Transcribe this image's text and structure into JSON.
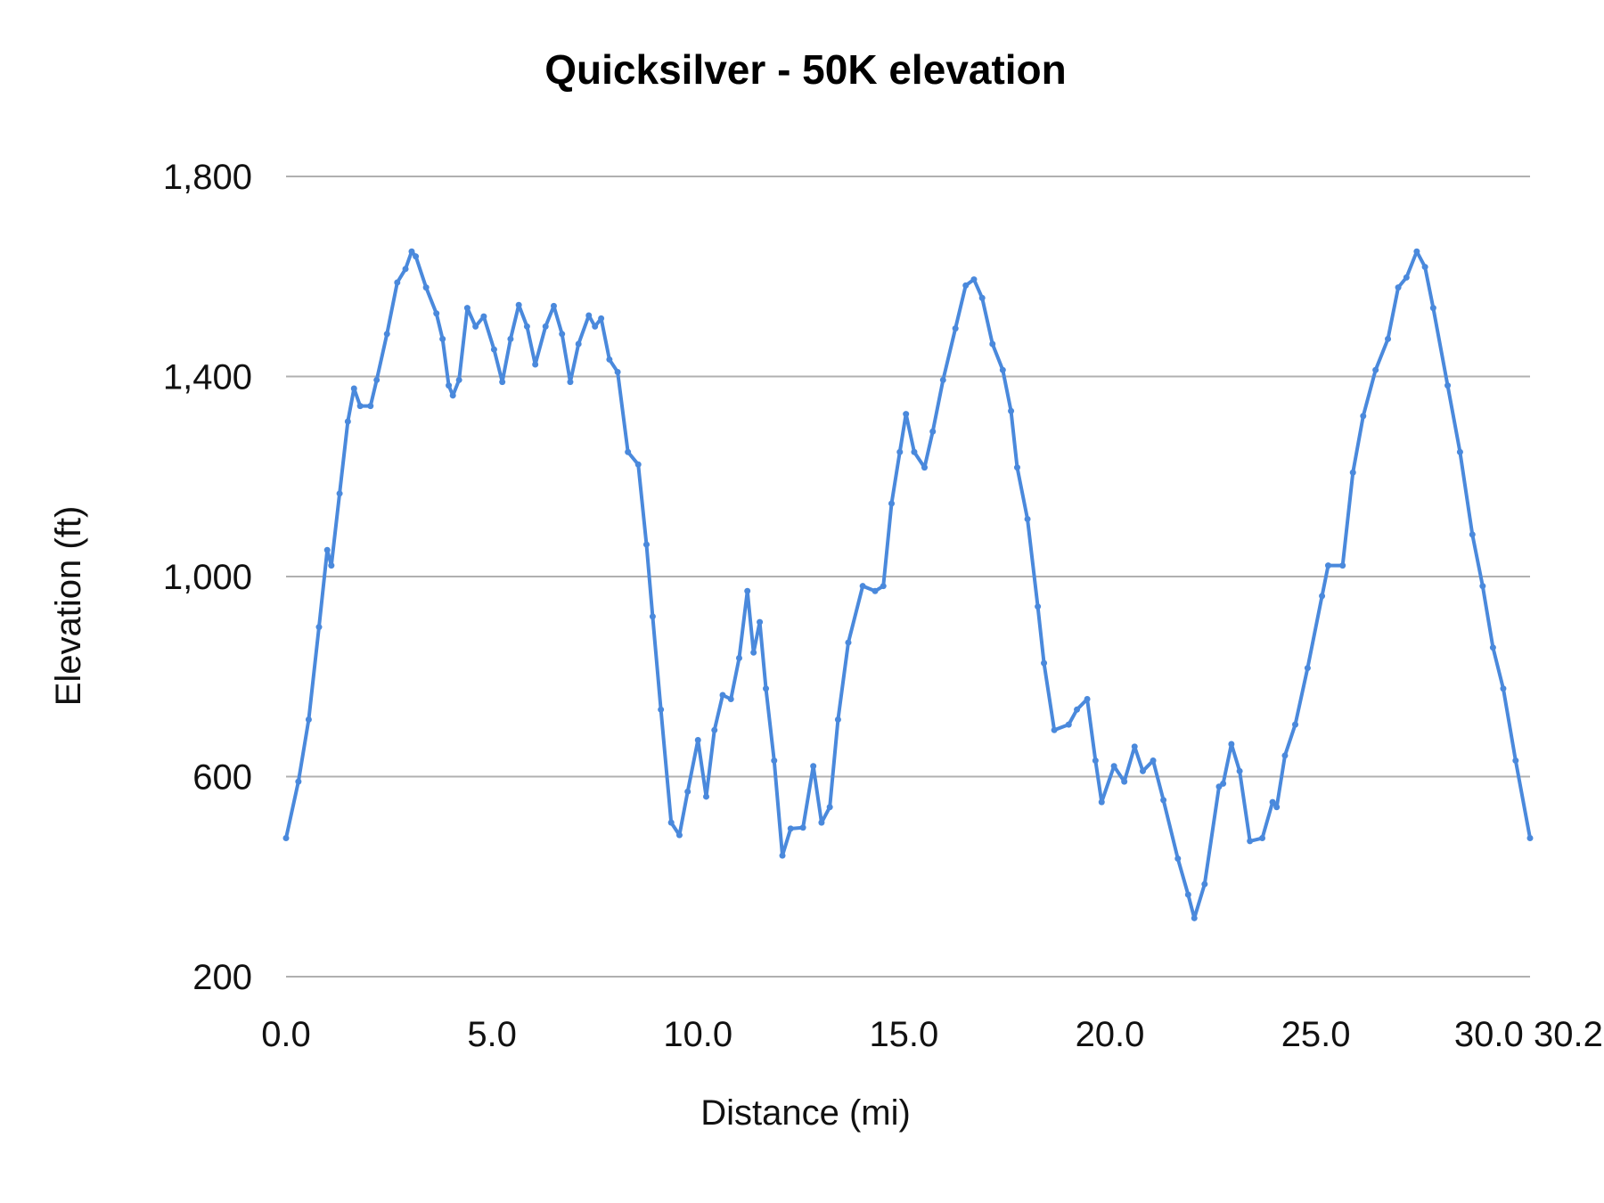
{
  "chart_data": {
    "type": "line",
    "title": "Quicksilver - 50K elevation",
    "xlabel": "Distance (mi)",
    "ylabel": "Elevation (ft)",
    "xlim": [
      0,
      30.2
    ],
    "ylim": [
      200,
      1800
    ],
    "x_ticks": [
      "0.0",
      "5.0",
      "10.0",
      "15.0",
      "20.0",
      "25.0",
      "30.0",
      "30.2"
    ],
    "x_tick_values": [
      0,
      5,
      10,
      15,
      20,
      25,
      30,
      30.2
    ],
    "y_ticks": [
      "200",
      "600",
      "1,000",
      "1,400",
      "1,800"
    ],
    "y_tick_values": [
      200,
      600,
      1000,
      1400,
      1800
    ],
    "grid": "horizontal",
    "legend": "none",
    "colors": {
      "line": "#4a89dc",
      "grid": "#b0b0b0"
    },
    "series": [
      {
        "x": [
          0,
          0.3,
          0.55,
          0.8,
          1.0,
          1.1,
          1.3,
          1.5,
          1.65,
          1.8,
          2.05,
          2.2,
          2.45,
          2.7,
          2.9,
          3.05,
          3.15,
          3.4,
          3.65,
          3.8,
          3.95,
          4.05,
          4.2,
          4.4,
          4.6,
          4.8,
          5.05,
          5.25,
          5.45,
          5.65,
          5.85,
          6.05,
          6.3,
          6.5,
          6.7,
          6.9,
          7.1,
          7.35,
          7.5,
          7.65,
          7.85,
          8.05,
          8.3,
          8.55,
          8.75,
          8.9,
          9.1,
          9.35,
          9.55,
          9.75,
          10.0,
          10.2,
          10.4,
          10.6,
          10.8,
          11.0,
          11.2,
          11.35,
          11.5,
          11.65,
          11.85,
          12.05,
          12.25,
          12.55,
          12.8,
          13.0,
          13.2,
          13.4,
          13.65,
          14.0,
          14.3,
          14.5,
          14.7,
          14.9,
          15.05,
          15.25,
          15.5,
          15.7,
          15.95,
          16.25,
          16.5,
          16.7,
          16.9,
          17.15,
          17.4,
          17.6,
          17.75,
          18.0,
          18.25,
          18.4,
          18.65,
          19.0,
          19.2,
          19.45,
          19.65,
          19.8,
          20.1,
          20.35,
          20.6,
          20.8,
          21.05,
          21.3,
          21.65,
          21.9,
          22.05,
          22.3,
          22.65,
          22.75,
          22.95,
          23.15,
          23.4,
          23.7,
          23.95,
          24.05,
          24.25,
          24.5,
          24.8,
          25.15,
          25.3,
          25.65,
          25.9,
          26.15,
          26.45,
          26.75,
          27.0,
          27.2,
          27.45,
          27.65,
          27.85,
          28.2,
          28.5,
          28.8,
          29.05,
          29.3,
          29.55,
          29.85,
          30.2
        ],
        "y": [
          477,
          590,
          714,
          899,
          1053,
          1022,
          1166,
          1310,
          1376,
          1341,
          1341,
          1393,
          1485,
          1588,
          1615,
          1650,
          1640,
          1578,
          1526,
          1475,
          1382,
          1362,
          1393,
          1537,
          1500,
          1520,
          1454,
          1389,
          1475,
          1543,
          1500,
          1424,
          1500,
          1541,
          1485,
          1389,
          1465,
          1522,
          1500,
          1516,
          1434,
          1409,
          1249,
          1224,
          1064,
          920,
          734,
          508,
          483,
          570,
          673,
          560,
          693,
          763,
          755,
          837,
          971,
          848,
          909,
          776,
          632,
          442,
          496,
          498,
          621,
          508,
          539,
          714,
          868,
          981,
          971,
          981,
          1146,
          1249,
          1325,
          1249,
          1218,
          1290,
          1393,
          1496,
          1582,
          1594,
          1557,
          1465,
          1413,
          1331,
          1218,
          1115,
          940,
          827,
          693,
          704,
          734,
          755,
          632,
          549,
          621,
          590,
          660,
          611,
          632,
          553,
          436,
          364,
          317,
          385,
          580,
          586,
          665,
          611,
          471,
          477,
          549,
          539,
          642,
          704,
          817,
          961,
          1022,
          1022,
          1208,
          1321,
          1413,
          1475,
          1578,
          1598,
          1650,
          1619,
          1537,
          1382,
          1249,
          1084,
          981,
          858,
          776,
          632,
          477
        ]
      }
    ]
  }
}
